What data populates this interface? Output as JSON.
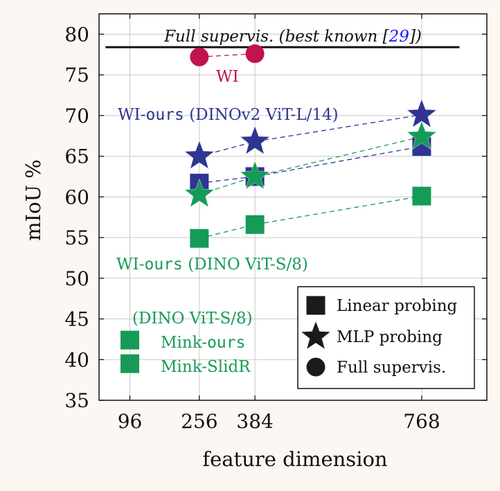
{
  "colors": {
    "background": "#fcf7f2",
    "plot_bg": "#ffffff",
    "grid": "#c8c8c8",
    "red": "#c1134e",
    "blue": "#2e3592",
    "green": "#159b57",
    "black": "#111111",
    "ref_link": "#1a1aff"
  },
  "chart_data": {
    "type": "scatter",
    "xlabel": "feature dimension",
    "ylabel": "mIoU %",
    "xlim": [
      25,
      918
    ],
    "ylim": [
      35,
      82.5
    ],
    "xticks": [
      96,
      256,
      384,
      768
    ],
    "yticks": [
      35,
      40,
      45,
      50,
      55,
      60,
      65,
      70,
      75,
      80
    ],
    "grid": true,
    "legend_position": "bottom-right",
    "legend": [
      {
        "marker": "square",
        "label": "Linear probing"
      },
      {
        "marker": "star",
        "label": "MLP probing"
      },
      {
        "marker": "circle",
        "label": "Full supervis."
      }
    ],
    "reference_line": {
      "y": 78.4,
      "x_start": 40,
      "x_end": 855,
      "label_main": "Full supervis. (best known [",
      "label_ref": "29",
      "label_end": "])"
    },
    "series": [
      {
        "name": "WI",
        "color": "#c1134e",
        "marker": "circle",
        "dashed": true,
        "x": [
          256,
          384
        ],
        "y": [
          77.2,
          77.6
        ]
      },
      {
        "name": "WI-ours (DINOv2 ViT-L/14) linear",
        "color": "#2e3592",
        "marker": "square",
        "dashed": true,
        "x": [
          256,
          384,
          768
        ],
        "y": [
          61.7,
          62.5,
          66.2
        ]
      },
      {
        "name": "WI-ours (DINOv2 ViT-L/14) MLP",
        "color": "#2e3592",
        "marker": "star",
        "dashed": true,
        "x": [
          256,
          384,
          768
        ],
        "y": [
          65.0,
          66.8,
          70.1
        ]
      },
      {
        "name": "WI-ours (DINO ViT-S/8) linear",
        "color": "#159b57",
        "marker": "square",
        "dashed": true,
        "x": [
          256,
          384,
          768
        ],
        "y": [
          54.9,
          56.6,
          60.1
        ]
      },
      {
        "name": "WI-ours (DINO ViT-S/8) MLP",
        "color": "#159b57",
        "marker": "star",
        "dashed": true,
        "x": [
          256,
          384,
          768
        ],
        "y": [
          60.3,
          62.5,
          67.4
        ]
      },
      {
        "name": "Mink-ours",
        "color": "#159b57",
        "marker": "square",
        "dashed": false,
        "x": [
          96
        ],
        "y": [
          42.4
        ]
      },
      {
        "name": "Mink-SlidR",
        "color": "#159b57",
        "marker": "square",
        "dashed": false,
        "x": [
          96
        ],
        "y": [
          39.5
        ]
      }
    ],
    "annotations": {
      "wi": "WI",
      "dinov2_prefix": "WI-",
      "dinov2_mono": "ours",
      "dinov2_suffix": " (DINOv2 ViT-L/14)",
      "dino_prefix": "WI-",
      "dino_mono": "ours",
      "dino_suffix": " (DINO ViT-S/8)",
      "mink_group": "(DINO ViT-S/8)",
      "mink_ours_prefix": "Mink-",
      "mink_ours_mono": "ours",
      "mink_slidr": "Mink-SlidR"
    }
  }
}
